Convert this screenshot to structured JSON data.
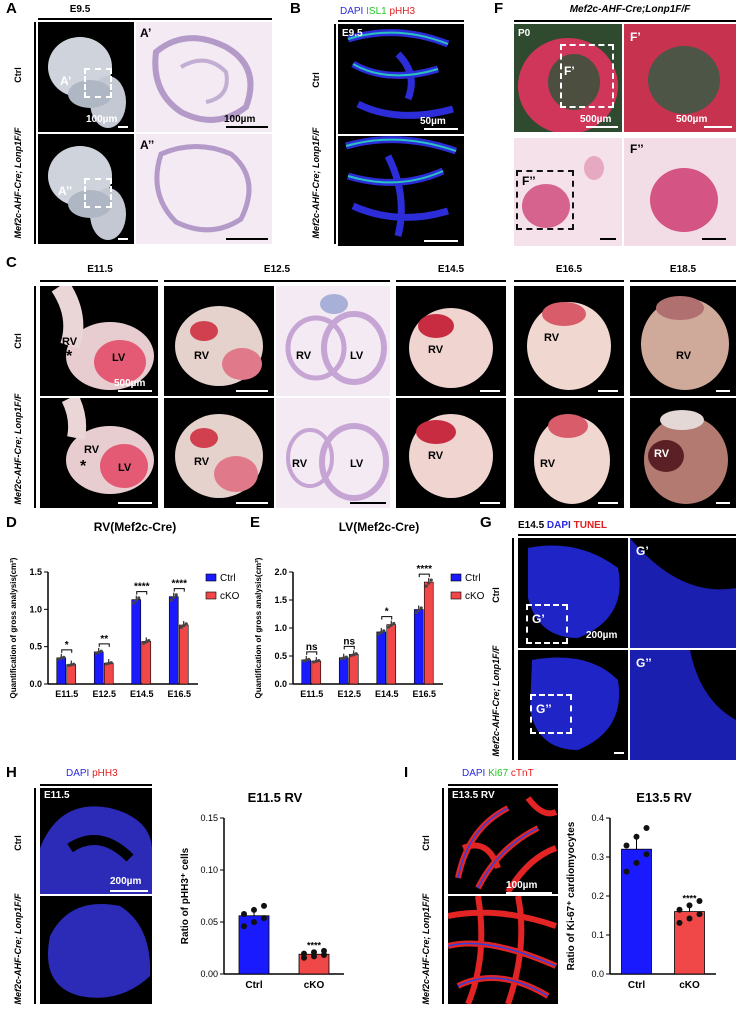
{
  "panels": {
    "A": {
      "letter": "A",
      "stage": "E9.5",
      "row_ctrl": "Ctrl",
      "row_cko": "Mef2c-AHF-Cre; Lonp1F/F",
      "inset_top": "A’",
      "inset_bottom": "A’’",
      "scale_left": "100µm",
      "scale_right": "100µm"
    },
    "B": {
      "letter": "B",
      "stain_dapi": "DAPI",
      "stain_isl1": "ISL1",
      "stain_phh3": "pHH3",
      "stage": "E9.5",
      "row_ctrl": "Ctrl",
      "row_cko": "Mef2c-AHF-Cre; Lonp1F/F",
      "scale": "50µm"
    },
    "F": {
      "letter": "F",
      "title": "Mef2c-AHF-Cre;Lonp1F/F",
      "stage": "P0",
      "inset_top": "F’",
      "inset_bottom": "F’’",
      "scale_left": "500µm",
      "scale_right": "500µm"
    },
    "C": {
      "letter": "C",
      "stages": [
        "E11.5",
        "E12.5",
        "E14.5",
        "E16.5",
        "E18.5"
      ],
      "row_ctrl": "Ctrl",
      "row_cko": "Mef2c-AHF-Cre; Lonp1F/F",
      "rv": "RV",
      "lv": "LV",
      "asterisk": "*",
      "scale": "500µm"
    },
    "D": {
      "letter": "D",
      "title": "RV(Mef2c-Cre)",
      "ylabel": "Quantification of gross analysis(cm²)",
      "significance": [
        "*",
        "**",
        "****",
        "****"
      ]
    },
    "E": {
      "letter": "E",
      "title": "LV(Mef2c-Cre)",
      "ylabel": "Quantification of gross analysis(cm²)",
      "significance": [
        "ns",
        "ns",
        "*",
        "****"
      ]
    },
    "G": {
      "letter": "G",
      "stage": "E14.5",
      "stain_dapi": "DAPI",
      "stain_tunel": "TUNEL",
      "row_ctrl": "Ctrl",
      "row_cko": "Mef2c-AHF-Cre; Lonp1F/F",
      "inset_top": "G’",
      "inset_bottom": "G’’",
      "scale": "200µm"
    },
    "H": {
      "letter": "H",
      "stain_dapi": "DAPI",
      "stain_phh3": "pHH3",
      "stage": "E11.5",
      "row_ctrl": "Ctrl",
      "row_cko": "Mef2c-AHF-Cre; Lonp1F/F",
      "scale": "200µm",
      "chart_title": "E11.5 RV",
      "ylabel": "Ratio of pHH3⁺ cells",
      "significance": "****"
    },
    "I": {
      "letter": "I",
      "stain_dapi": "DAPI",
      "stain_ki67": "Ki67",
      "stain_ctnt": "cTnT",
      "stage": "E13.5 RV",
      "row_ctrl": "Ctrl",
      "row_cko": "Mef2c-AHF-Cre; Lonp1F/F",
      "scale": "100µm",
      "chart_title": "E13.5 RV",
      "ylabel": "Ratio of Ki-67⁺ cardiomyocytes",
      "significance": "****"
    }
  },
  "colors": {
    "ctrl": "#1a1aff",
    "cko": "#f04848",
    "dapi": "#2a2ae0",
    "green": "#22c422",
    "red": "#e01e1e"
  },
  "chart_data": [
    {
      "id": "D",
      "type": "bar",
      "title": "RV(Mef2c-Cre)",
      "categories": [
        "E11.5",
        "E12.5",
        "E14.5",
        "E16.5"
      ],
      "ylabel": "Quantification of gross analysis(cm²)",
      "ylim": [
        0,
        1.5
      ],
      "yticks": [
        0.0,
        0.5,
        1.0,
        1.5
      ],
      "legend": "top-right",
      "series": [
        {
          "name": "Ctrl",
          "values": [
            0.35,
            0.43,
            1.13,
            1.17
          ]
        },
        {
          "name": "cKO",
          "values": [
            0.26,
            0.28,
            0.57,
            0.79
          ]
        }
      ]
    },
    {
      "id": "E",
      "type": "bar",
      "title": "LV(Mef2c-Cre)",
      "categories": [
        "E11.5",
        "E12.5",
        "E14.5",
        "E16.5"
      ],
      "ylabel": "Quantification of gross analysis(cm²)",
      "ylim": [
        0,
        2.0
      ],
      "yticks": [
        0.0,
        0.5,
        1.0,
        1.5,
        2.0
      ],
      "legend": "top-right",
      "series": [
        {
          "name": "Ctrl",
          "values": [
            0.43,
            0.47,
            0.93,
            1.33
          ]
        },
        {
          "name": "cKO",
          "values": [
            0.41,
            0.53,
            1.06,
            1.82
          ]
        }
      ]
    },
    {
      "id": "H",
      "type": "bar",
      "title": "E11.5 RV",
      "categories": [
        "Ctrl",
        "cKO"
      ],
      "ylabel": "Ratio of pHH3⁺ cells",
      "ylim": [
        0,
        0.15
      ],
      "yticks": [
        0.0,
        0.05,
        0.1,
        0.15
      ],
      "values": [
        0.056,
        0.019
      ]
    },
    {
      "id": "I",
      "type": "bar",
      "title": "E13.5 RV",
      "categories": [
        "Ctrl",
        "cKO"
      ],
      "ylabel": "Ratio of Ki-67⁺ cardiomyocytes",
      "ylim": [
        0,
        0.4
      ],
      "yticks": [
        0.0,
        0.1,
        0.2,
        0.3,
        0.4
      ],
      "values": [
        0.32,
        0.16
      ]
    }
  ]
}
